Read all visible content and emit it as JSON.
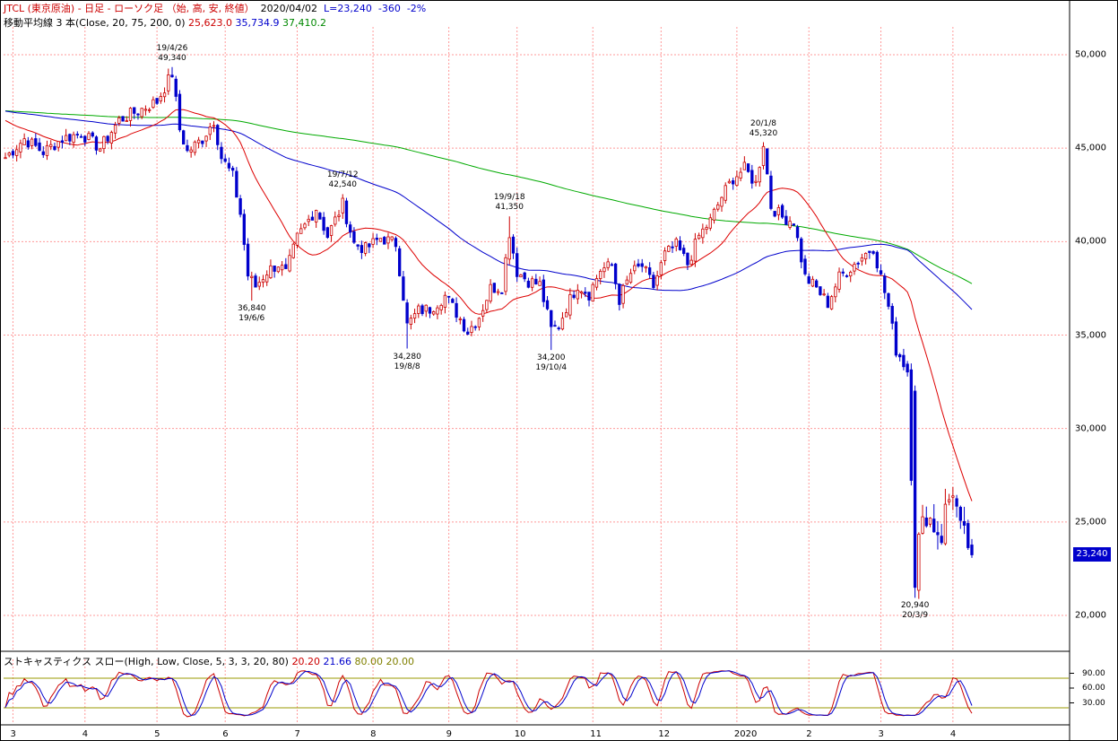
{
  "header": {
    "symbol": "JTCL (東京原油) - 日足 - ローソク足 （始, 高, 安, 終値）",
    "date": "2020/04/02",
    "last": "L=23,240",
    "change": "-360",
    "change_pct": "-2%",
    "ma_label": "移動平均線 3 本(Close, 20, 75, 200, 0)",
    "ma20": "25,623.0",
    "ma75": "35,734.9",
    "ma200": "37,410.2",
    "stoch_label": "ストキャスティクス スロー(High, Low, Close, 5, 3, 3, 20, 80)",
    "stoch_k": "20.20",
    "stoch_d": "21.66",
    "stoch_hi": "80.00",
    "stoch_lo": "20.00",
    "last_price_box": "23,240"
  },
  "colors": {
    "up": "#cc0000",
    "down": "#0000cc",
    "ma20": "#dd0000",
    "ma75": "#0000cc",
    "ma200": "#00aa00",
    "grid": "#ff9999",
    "band": "#999900"
  },
  "chart_data": {
    "type": "candlestick",
    "y_ticks": [
      "50,000",
      "45,000",
      "40,000",
      "35,000",
      "30,000",
      "25,000",
      "20,000"
    ],
    "y_tick_values": [
      50000,
      45000,
      40000,
      35000,
      30000,
      25000,
      20000
    ],
    "ylim": [
      18000,
      52000
    ],
    "stoch_ticks": [
      "90.00",
      "60.00",
      "30.00"
    ],
    "stoch_tick_values": [
      90,
      60,
      30
    ],
    "x_ticks": [
      "3",
      "4",
      "5",
      "6",
      "7",
      "8",
      "9",
      "10",
      "11",
      "12",
      "2020",
      "2",
      "3",
      "4"
    ],
    "x_tick_index": [
      2,
      21,
      40,
      58,
      77,
      97,
      117,
      135,
      155,
      173,
      193,
      212,
      231,
      250
    ],
    "num_bars": 256,
    "annotations": [
      {
        "date": "19/4/26",
        "price": "49,340",
        "index": 44,
        "pos": "above"
      },
      {
        "date": "19/6/6",
        "price": "36,840",
        "index": 65,
        "pos": "below"
      },
      {
        "date": "19/7/12",
        "price": "42,540",
        "index": 89,
        "pos": "above"
      },
      {
        "date": "19/8/8",
        "price": "34,280",
        "index": 106,
        "pos": "below"
      },
      {
        "date": "19/9/18",
        "price": "41,350",
        "index": 133,
        "pos": "above"
      },
      {
        "date": "19/10/4",
        "price": "34,200",
        "index": 144,
        "pos": "below"
      },
      {
        "date": "20/1/8",
        "price": "45,320",
        "index": 200,
        "pos": "above"
      },
      {
        "date": "20/3/9",
        "price": "20,940",
        "index": 240,
        "pos": "below"
      }
    ],
    "anchors": [
      [
        0,
        44500
      ],
      [
        5,
        45500
      ],
      [
        10,
        44800
      ],
      [
        15,
        45500
      ],
      [
        20,
        45800
      ],
      [
        25,
        45000
      ],
      [
        30,
        46500
      ],
      [
        35,
        47000
      ],
      [
        40,
        47500
      ],
      [
        44,
        49000
      ],
      [
        46,
        46000
      ],
      [
        48,
        44800
      ],
      [
        52,
        45500
      ],
      [
        55,
        46500
      ],
      [
        57,
        44500
      ],
      [
        60,
        43500
      ],
      [
        62,
        41500
      ],
      [
        64,
        38200
      ],
      [
        66,
        37600
      ],
      [
        69,
        38400
      ],
      [
        72,
        38800
      ],
      [
        74,
        38300
      ],
      [
        77,
        40200
      ],
      [
        82,
        41800
      ],
      [
        85,
        40300
      ],
      [
        89,
        42000
      ],
      [
        92,
        39900
      ],
      [
        95,
        39600
      ],
      [
        99,
        40200
      ],
      [
        103,
        39900
      ],
      [
        105,
        37100
      ],
      [
        106,
        35500
      ],
      [
        109,
        36300
      ],
      [
        112,
        36400
      ],
      [
        116,
        37100
      ],
      [
        119,
        36200
      ],
      [
        122,
        35200
      ],
      [
        125,
        36000
      ],
      [
        128,
        37500
      ],
      [
        131,
        37600
      ],
      [
        133,
        40500
      ],
      [
        135,
        38400
      ],
      [
        138,
        37900
      ],
      [
        141,
        37700
      ],
      [
        144,
        35300
      ],
      [
        146,
        35500
      ],
      [
        148,
        36500
      ],
      [
        151,
        37700
      ],
      [
        154,
        37200
      ],
      [
        157,
        38500
      ],
      [
        160,
        38700
      ],
      [
        162,
        36900
      ],
      [
        165,
        38300
      ],
      [
        168,
        38700
      ],
      [
        171,
        37600
      ],
      [
        174,
        39300
      ],
      [
        177,
        39800
      ],
      [
        180,
        38800
      ],
      [
        183,
        40300
      ],
      [
        186,
        41100
      ],
      [
        189,
        42400
      ],
      [
        192,
        43400
      ],
      [
        195,
        43900
      ],
      [
        198,
        43100
      ],
      [
        200,
        45300
      ],
      [
        202,
        41900
      ],
      [
        205,
        41300
      ],
      [
        208,
        41100
      ],
      [
        211,
        38100
      ],
      [
        214,
        37500
      ],
      [
        217,
        36700
      ],
      [
        220,
        38100
      ],
      [
        223,
        38600
      ],
      [
        226,
        39200
      ],
      [
        229,
        39700
      ],
      [
        231,
        38100
      ],
      [
        233,
        36500
      ],
      [
        235,
        34200
      ],
      [
        236,
        33900
      ],
      [
        238,
        33100
      ],
      [
        240,
        22000
      ],
      [
        241,
        24000
      ],
      [
        243,
        25500
      ],
      [
        245,
        24800
      ],
      [
        247,
        24300
      ],
      [
        248,
        25600
      ],
      [
        250,
        26800
      ],
      [
        252,
        24500
      ],
      [
        254,
        23800
      ],
      [
        255,
        23240
      ]
    ]
  }
}
